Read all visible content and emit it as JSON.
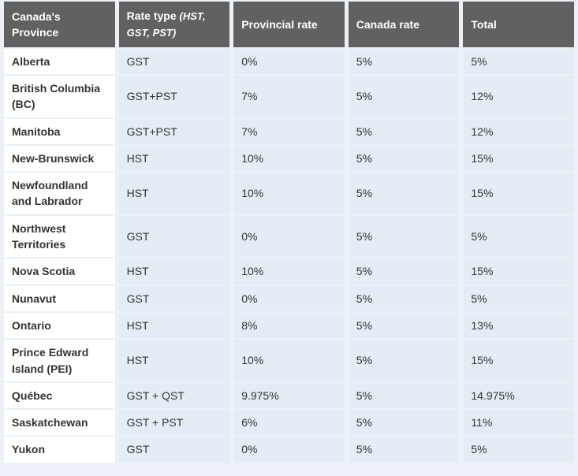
{
  "table": {
    "columns": [
      {
        "label": "Canada's Province",
        "sublabel": ""
      },
      {
        "label": "Rate type",
        "sublabel": "(HST, GST, PST)"
      },
      {
        "label": "Provincial rate",
        "sublabel": ""
      },
      {
        "label": "Canada rate",
        "sublabel": ""
      },
      {
        "label": "Total",
        "sublabel": ""
      }
    ],
    "rows": [
      {
        "province": "Alberta",
        "rate_type": "GST",
        "provincial_rate": "0%",
        "canada_rate": "5%",
        "total": "5%"
      },
      {
        "province": "British Columbia (BC)",
        "rate_type": "GST+PST",
        "provincial_rate": "7%",
        "canada_rate": "5%",
        "total": "12%"
      },
      {
        "province": "Manitoba",
        "rate_type": "GST+PST",
        "provincial_rate": "7%",
        "canada_rate": "5%",
        "total": "12%"
      },
      {
        "province": "New-Brunswick",
        "rate_type": "HST",
        "provincial_rate": "10%",
        "canada_rate": "5%",
        "total": "15%"
      },
      {
        "province": "Newfoundland and Labrador",
        "rate_type": "HST",
        "provincial_rate": "10%",
        "canada_rate": "5%",
        "total": "15%"
      },
      {
        "province": "Northwest Territories",
        "rate_type": "GST",
        "provincial_rate": "0%",
        "canada_rate": "5%",
        "total": "5%"
      },
      {
        "province": "Nova Scotia",
        "rate_type": "HST",
        "provincial_rate": "10%",
        "canada_rate": "5%",
        "total": "15%"
      },
      {
        "province": "Nunavut",
        "rate_type": "GST",
        "provincial_rate": "0%",
        "canada_rate": "5%",
        "total": "5%"
      },
      {
        "province": "Ontario",
        "rate_type": "HST",
        "provincial_rate": "8%",
        "canada_rate": "5%",
        "total": "13%"
      },
      {
        "province": "Prince Edward Island (PEI)",
        "rate_type": "HST",
        "provincial_rate": "10%",
        "canada_rate": "5%",
        "total": "15%"
      },
      {
        "province": "Québec",
        "rate_type": "GST + QST",
        "provincial_rate": "9.975%",
        "canada_rate": "5%",
        "total": "14.975%"
      },
      {
        "province": "Saskatchewan",
        "rate_type": "GST + PST",
        "provincial_rate": "6%",
        "canada_rate": "5%",
        "total": "11%"
      },
      {
        "province": "Yukon",
        "rate_type": "GST",
        "provincial_rate": "0%",
        "canada_rate": "5%",
        "total": "5%"
      }
    ],
    "colors": {
      "header_bg": "#616161",
      "header_text": "#ffffff",
      "province_cell_bg": "#ffffff",
      "data_cell_bg": "#e4edf6",
      "page_bg": "#ebf1f7",
      "text": "#333333"
    }
  }
}
